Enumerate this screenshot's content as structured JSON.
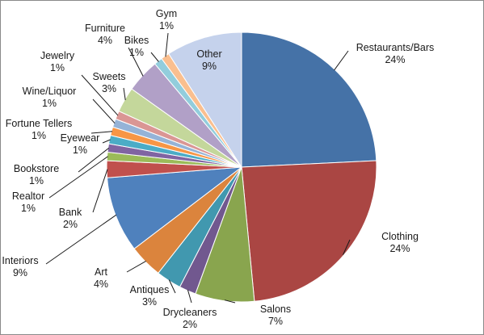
{
  "chart_data": {
    "type": "pie",
    "title": "",
    "start_angle_deg": 0,
    "direction": "clockwise",
    "slices": [
      {
        "name": "Restaurants/Bars",
        "value": 24,
        "label": "24%",
        "color": "#4572A7"
      },
      {
        "name": "Clothing",
        "value": 24,
        "label": "24%",
        "color": "#AA4643"
      },
      {
        "name": "Salons",
        "value": 7,
        "label": "7%",
        "color": "#89A54E"
      },
      {
        "name": "Drycleaners",
        "value": 2,
        "label": "2%",
        "color": "#71588F"
      },
      {
        "name": "Antiques",
        "value": 3,
        "label": "3%",
        "color": "#4198AF"
      },
      {
        "name": "Art",
        "value": 4,
        "label": "4%",
        "color": "#DB843D"
      },
      {
        "name": "Interiors",
        "value": 9,
        "label": "9%",
        "color": "#4F81BD"
      },
      {
        "name": "Bank",
        "value": 2,
        "label": "2%",
        "color": "#C0504D"
      },
      {
        "name": "Realtor",
        "value": 1,
        "label": "1%",
        "color": "#9BBB59"
      },
      {
        "name": "Bookstore",
        "value": 1,
        "label": "1%",
        "color": "#8064A2"
      },
      {
        "name": "Eyewear",
        "value": 1,
        "label": "1%",
        "color": "#4BACC6"
      },
      {
        "name": "Fortune Tellers",
        "value": 1,
        "label": "1%",
        "color": "#F79646"
      },
      {
        "name": "Wine/Liquor",
        "value": 1,
        "label": "1%",
        "color": "#95B3D7"
      },
      {
        "name": "Jewelry",
        "value": 1,
        "label": "1%",
        "color": "#DA9694"
      },
      {
        "name": "Sweets",
        "value": 3,
        "label": "3%",
        "color": "#C4D79B"
      },
      {
        "name": "Furniture",
        "value": 4,
        "label": "4%",
        "color": "#B1A0C7"
      },
      {
        "name": "Bikes",
        "value": 1,
        "label": "1%",
        "color": "#92CDDC"
      },
      {
        "name": "Gym",
        "value": 1,
        "label": "1%",
        "color": "#FABF8F"
      },
      {
        "name": "Other",
        "value": 9,
        "label": "9%",
        "color": "#C5D2EC"
      }
    ]
  }
}
